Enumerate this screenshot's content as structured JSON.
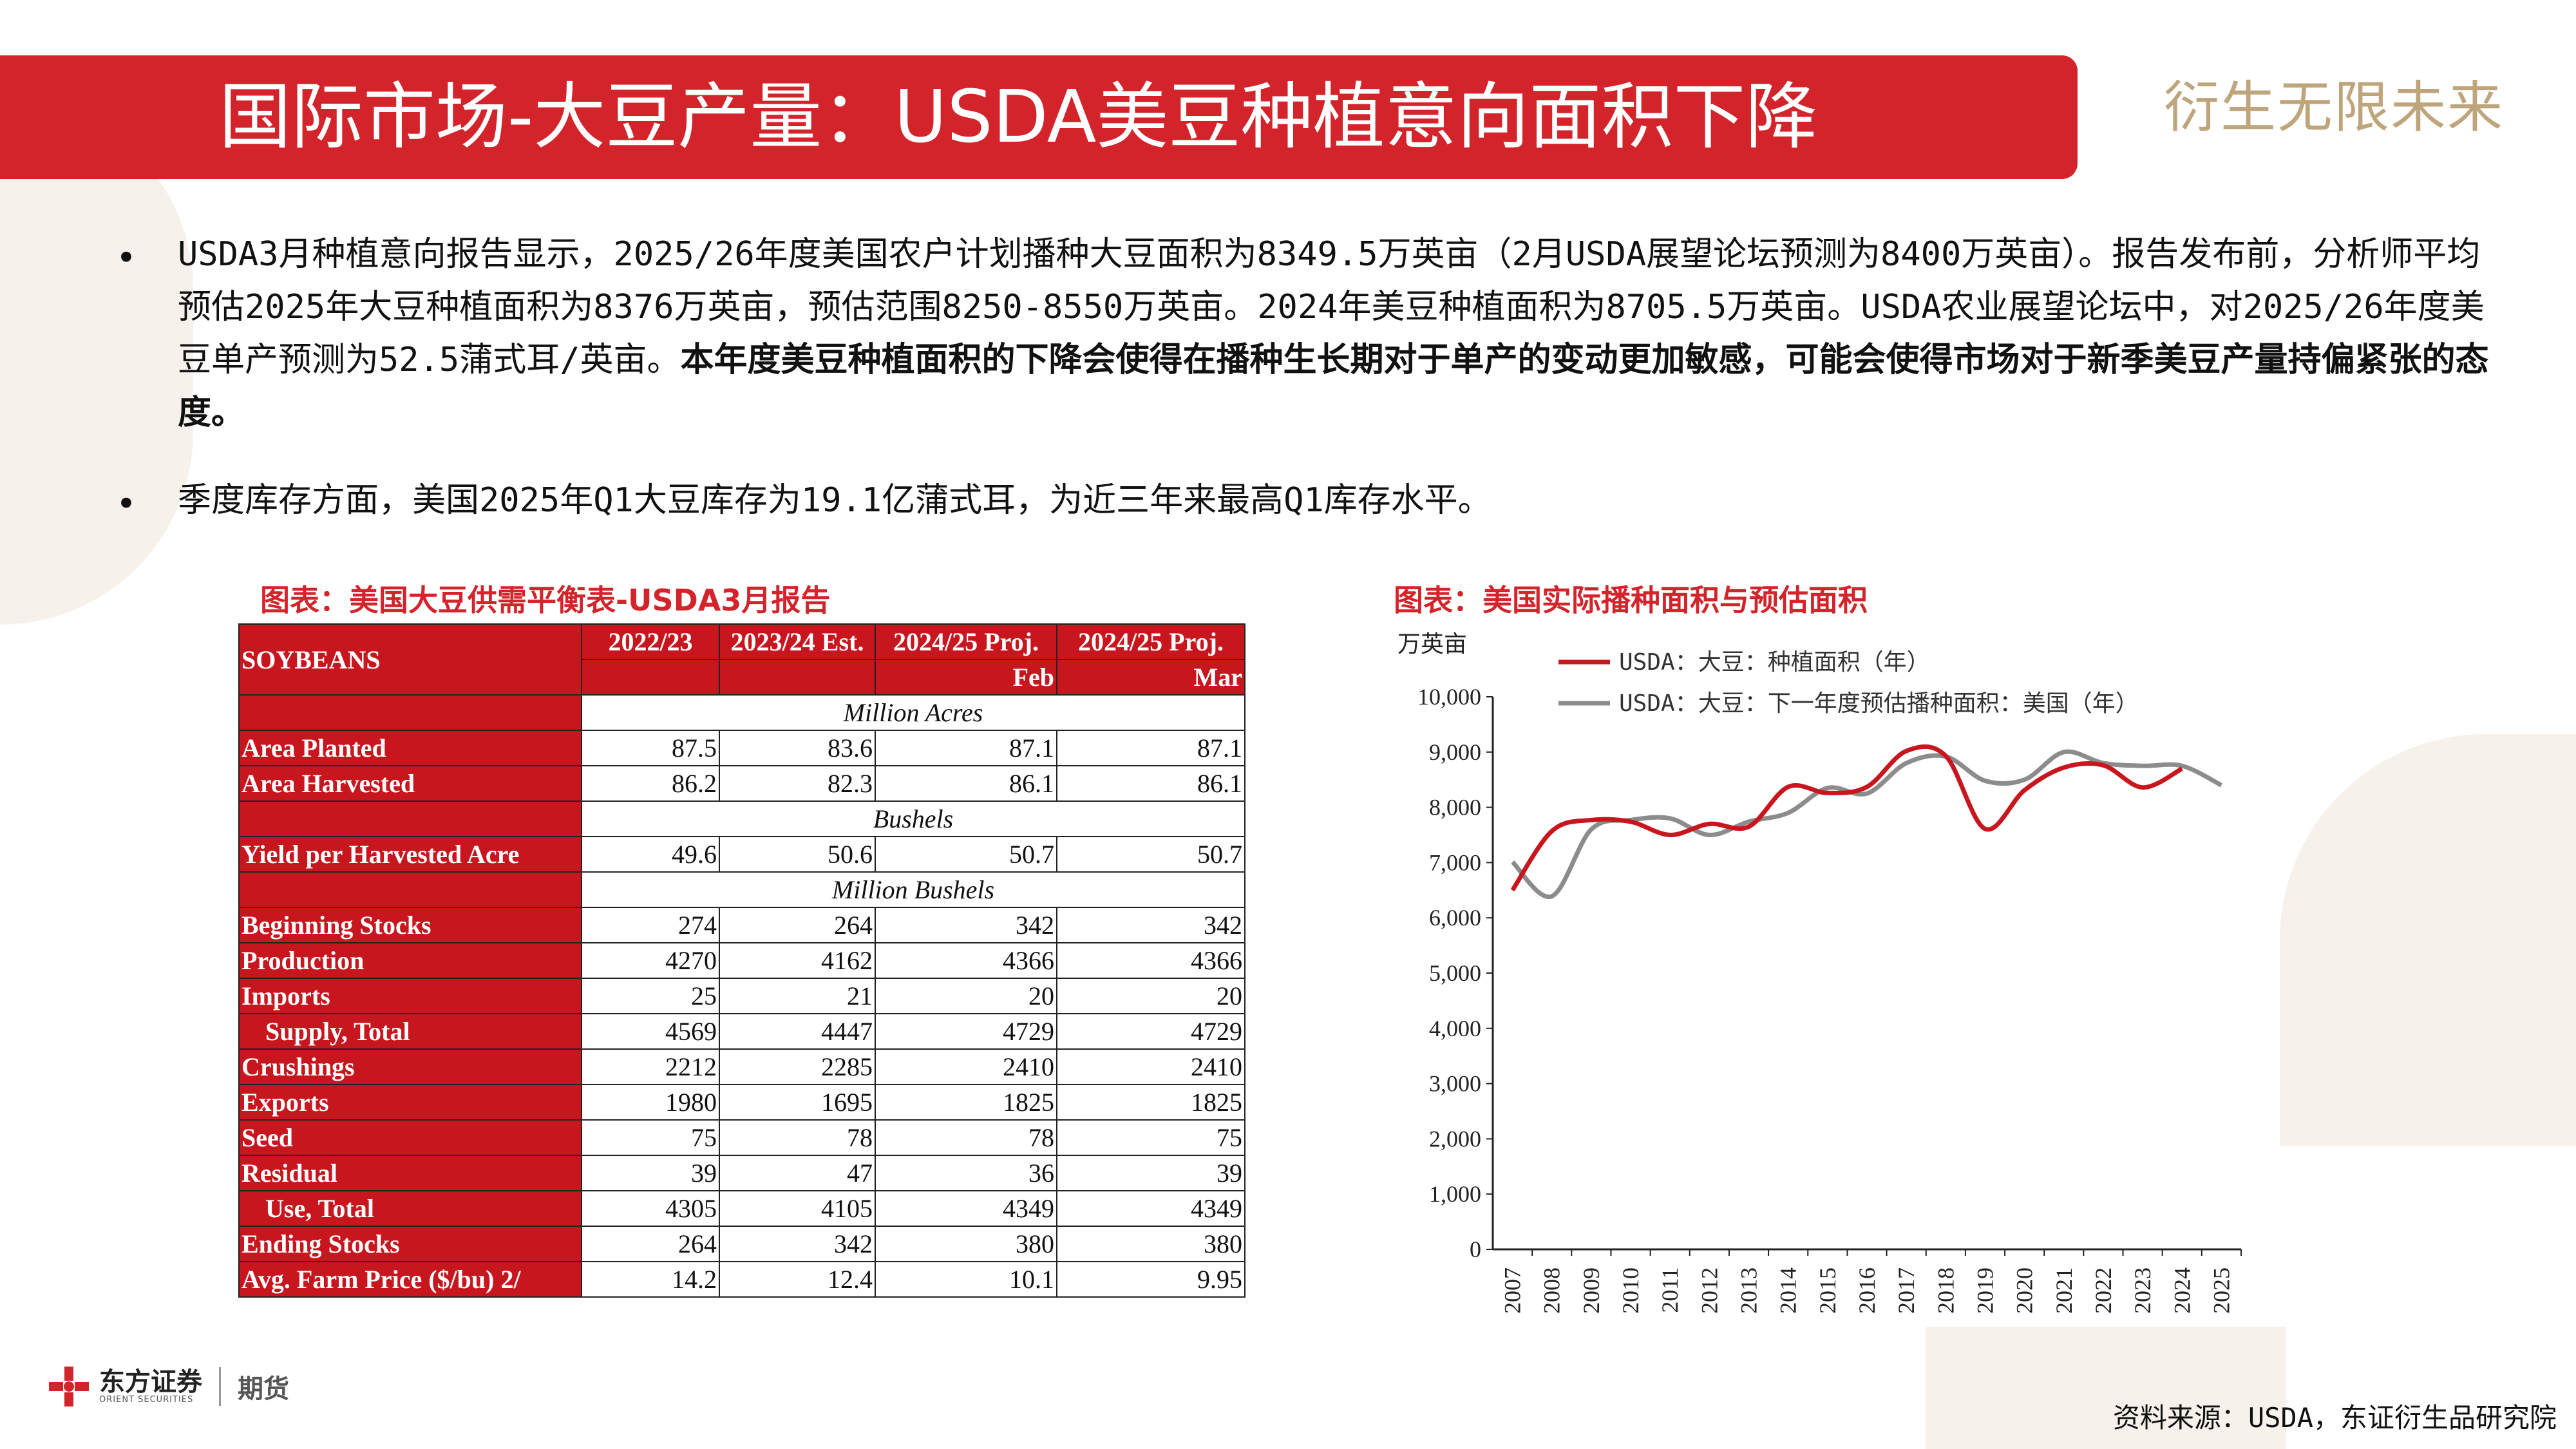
{
  "header": {
    "title": "国际市场-大豆产量：USDA美豆种植意向面积下降",
    "slogan": "衍生无限未来"
  },
  "bullets": {
    "b1_normal": "USDA3月种植意向报告显示，2025/26年度美国农户计划播种大豆面积为8349.5万英亩（2月USDA展望论坛预测为8400万英亩）。报告发布前，分析师平均预估2025年大豆种植面积为8376万英亩，预估范围8250-8550万英亩。2024年美豆种植面积为8705.5万英亩。USDA农业展望论坛中，对2025/26年度美豆单产预测为52.5蒲式耳/英亩。",
    "b1_bold": "本年度美豆种植面积的下降会使得在播种生长期对于单产的变动更加敏感，可能会使得市场对于新季美豆产量持偏紧张的态度。",
    "b2": "季度库存方面，美国2025年Q1大豆库存为19.1亿蒲式耳，为近三年来最高Q1库存水平。"
  },
  "table_section": {
    "title": "图表：美国大豆供需平衡表-USDA3月报告",
    "corner": "SOYBEANS",
    "col_headers": [
      "2022/23",
      "2023/24 Est.",
      "2024/25 Proj.",
      "2024/25 Proj."
    ],
    "col_sub": [
      "",
      "",
      "Feb",
      "Mar"
    ],
    "units": {
      "acres": "Million Acres",
      "bushels": "Bushels",
      "mbushels": "Million Bushels"
    },
    "rows": [
      {
        "label": "Area Planted",
        "v": [
          "87.5",
          "83.6",
          "87.1",
          "87.1"
        ]
      },
      {
        "label": "Area Harvested",
        "v": [
          "86.2",
          "82.3",
          "86.1",
          "86.1"
        ]
      },
      {
        "label": "Yield per Harvested Acre",
        "v": [
          "49.6",
          "50.6",
          "50.7",
          "50.7"
        ]
      },
      {
        "label": "Beginning Stocks",
        "v": [
          "274",
          "264",
          "342",
          "342"
        ]
      },
      {
        "label": "Production",
        "v": [
          "4270",
          "4162",
          "4366",
          "4366"
        ]
      },
      {
        "label": "Imports",
        "v": [
          "25",
          "21",
          "20",
          "20"
        ]
      },
      {
        "label": "Supply, Total",
        "v": [
          "4569",
          "4447",
          "4729",
          "4729"
        ]
      },
      {
        "label": "Crushings",
        "v": [
          "2212",
          "2285",
          "2410",
          "2410"
        ]
      },
      {
        "label": "Exports",
        "v": [
          "1980",
          "1695",
          "1825",
          "1825"
        ]
      },
      {
        "label": "Seed",
        "v": [
          "75",
          "78",
          "78",
          "75"
        ]
      },
      {
        "label": "Residual",
        "v": [
          "39",
          "47",
          "36",
          "39"
        ]
      },
      {
        "label": "Use, Total",
        "v": [
          "4305",
          "4105",
          "4349",
          "4349"
        ]
      },
      {
        "label": "Ending Stocks",
        "v": [
          "264",
          "342",
          "380",
          "380"
        ]
      },
      {
        "label": "Avg. Farm Price ($/bu)  2/",
        "v": [
          "14.2",
          "12.4",
          "10.1",
          "9.95"
        ]
      }
    ]
  },
  "chart_section": {
    "title": "图表：美国实际播种面积与预估面积"
  },
  "chart_data": {
    "type": "line",
    "title": "",
    "ylabel": "万英亩",
    "xlabel": "",
    "ylim": [
      0,
      10000
    ],
    "yticks": [
      "0",
      "1,000",
      "2,000",
      "3,000",
      "4,000",
      "5,000",
      "6,000",
      "7,000",
      "8,000",
      "9,000",
      "10,000"
    ],
    "x": [
      "2007",
      "2008",
      "2009",
      "2010",
      "2011",
      "2012",
      "2013",
      "2014",
      "2015",
      "2016",
      "2017",
      "2018",
      "2019",
      "2020",
      "2021",
      "2022",
      "2023",
      "2024",
      "2025"
    ],
    "legend_position": "top",
    "grid": false,
    "series": [
      {
        "name": "USDA：大豆：种植面积（年）",
        "color": "#c8161e",
        "values": [
          6500,
          7570,
          7770,
          7740,
          7500,
          7700,
          7650,
          8370,
          8260,
          8370,
          9020,
          8930,
          7610,
          8310,
          8720,
          8760,
          8360,
          8700,
          null
        ]
      },
      {
        "name": "USDA：大豆：下一年度预估播种面积：美国（年）",
        "color": "#8c8c8c",
        "values": [
          7010,
          6390,
          7600,
          7770,
          7800,
          7500,
          7740,
          7900,
          8350,
          8250,
          8800,
          8920,
          8480,
          8500,
          9000,
          8800,
          8750,
          8750,
          8400
        ]
      }
    ]
  },
  "footer": {
    "logo_name": "东方证券",
    "logo_sub": "ORIENT SECURITIES",
    "logo_futures": "期货",
    "source": "资料来源：USDA，东证衍生品研究院"
  },
  "colors": {
    "brand_red": "#d3242b",
    "accent_gold": "#bfa57c",
    "series_gray": "#8c8c8c"
  }
}
